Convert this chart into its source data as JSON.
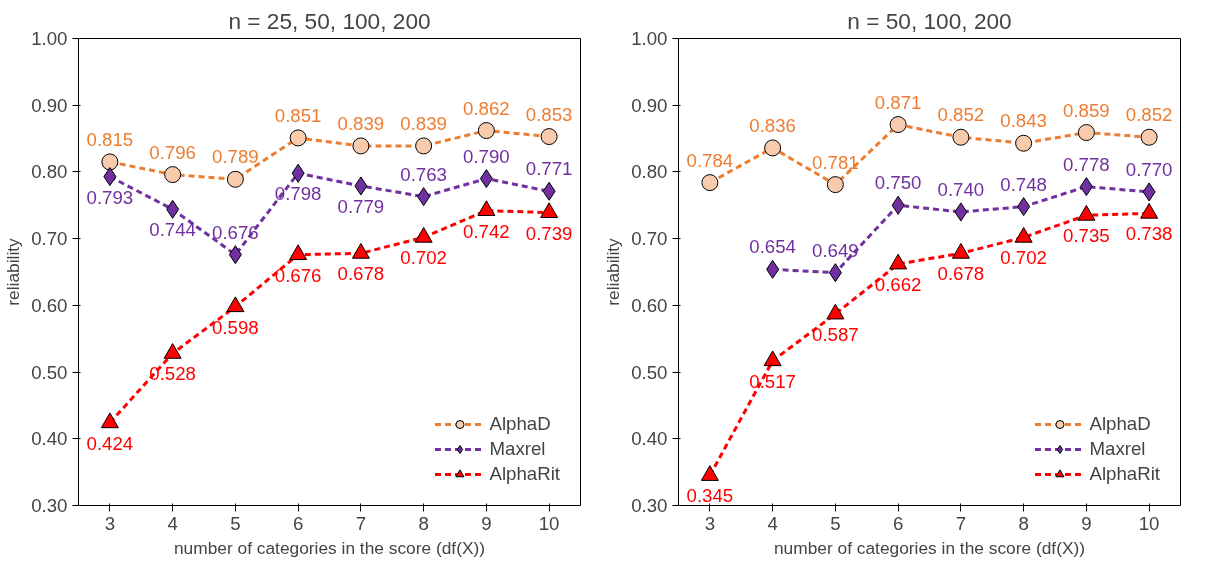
{
  "chart_data": [
    {
      "type": "line",
      "title": "n = 25, 50, 100, 200",
      "xlabel": "number of categories in the score (df(X))",
      "ylabel": "reliability",
      "categories": [
        "3",
        "4",
        "5",
        "6",
        "7",
        "8",
        "9",
        "10"
      ],
      "ylim": [
        0.3,
        1.0
      ],
      "yticks": [
        {
          "value": 0.3,
          "label": "0.30"
        },
        {
          "value": 0.4,
          "label": "0.40"
        },
        {
          "value": 0.5,
          "label": "0.50"
        },
        {
          "value": 0.6,
          "label": "0.60"
        },
        {
          "value": 0.7,
          "label": "0.70"
        },
        {
          "value": 0.8,
          "label": "0.80"
        },
        {
          "value": 0.9,
          "label": "0.90"
        },
        {
          "value": 1.0,
          "label": "1.00"
        }
      ],
      "grid": false,
      "legend": "bottom right",
      "line_style": "dashed",
      "series": [
        {
          "name": "AlphaD",
          "color": "#ed7d31",
          "marker": "circle",
          "values": [
            0.815,
            0.796,
            0.789,
            0.851,
            0.839,
            0.839,
            0.862,
            0.853
          ],
          "value_labels": [
            "0.815",
            "0.796",
            "0.789",
            "0.851",
            "0.839",
            "0.839",
            "0.862",
            "0.853"
          ]
        },
        {
          "name": "Maxrel",
          "color": "#7030a0",
          "marker": "diamond",
          "values": [
            0.793,
            0.744,
            0.676,
            0.798,
            0.779,
            0.763,
            0.79,
            0.771
          ],
          "value_labels": [
            "0.793",
            "0.744",
            "0.676",
            "0.798",
            "0.779",
            "0.763",
            "0.790",
            "0.771"
          ]
        },
        {
          "name": "AlphaRit",
          "color": "#ff0000",
          "marker": "triangle",
          "values": [
            0.424,
            0.528,
            0.598,
            0.676,
            0.678,
            0.702,
            0.742,
            0.739
          ],
          "value_labels": [
            "0.424",
            "0.528",
            "0.598",
            "0.676",
            "0.678",
            "0.702",
            "0.742",
            "0.739"
          ]
        }
      ]
    },
    {
      "type": "line",
      "title": "n = 50, 100, 200",
      "xlabel": "number of categories in the score (df(X))",
      "ylabel": "reliability",
      "categories": [
        "3",
        "4",
        "5",
        "6",
        "7",
        "8",
        "9",
        "10"
      ],
      "ylim": [
        0.3,
        1.0
      ],
      "yticks": [
        {
          "value": 0.3,
          "label": "0.30"
        },
        {
          "value": 0.4,
          "label": "0.40"
        },
        {
          "value": 0.5,
          "label": "0.50"
        },
        {
          "value": 0.6,
          "label": "0.60"
        },
        {
          "value": 0.7,
          "label": "0.70"
        },
        {
          "value": 0.8,
          "label": "0.80"
        },
        {
          "value": 0.9,
          "label": "0.90"
        },
        {
          "value": 1.0,
          "label": "1.00"
        }
      ],
      "grid": false,
      "legend": "bottom right",
      "line_style": "dashed",
      "series": [
        {
          "name": "AlphaD",
          "color": "#ed7d31",
          "marker": "circle",
          "values": [
            0.784,
            0.836,
            0.781,
            0.871,
            0.852,
            0.843,
            0.859,
            0.852
          ],
          "value_labels": [
            "0.784",
            "0.836",
            "0.781",
            "0.871",
            "0.852",
            "0.843",
            "0.859",
            "0.852"
          ]
        },
        {
          "name": "Maxrel",
          "color": "#7030a0",
          "marker": "diamond",
          "values": [
            null,
            0.654,
            0.649,
            0.75,
            0.74,
            0.748,
            0.778,
            0.77
          ],
          "value_labels": [
            null,
            "0.654",
            "0.649",
            "0.750",
            "0.740",
            "0.748",
            "0.778",
            "0.770"
          ]
        },
        {
          "name": "AlphaRit",
          "color": "#ff0000",
          "marker": "triangle",
          "values": [
            0.345,
            0.517,
            0.587,
            0.662,
            0.678,
            0.702,
            0.735,
            0.738
          ],
          "value_labels": [
            "0.345",
            "0.517",
            "0.587",
            "0.662",
            "0.678",
            "0.702",
            "0.735",
            "0.738"
          ]
        }
      ]
    }
  ]
}
